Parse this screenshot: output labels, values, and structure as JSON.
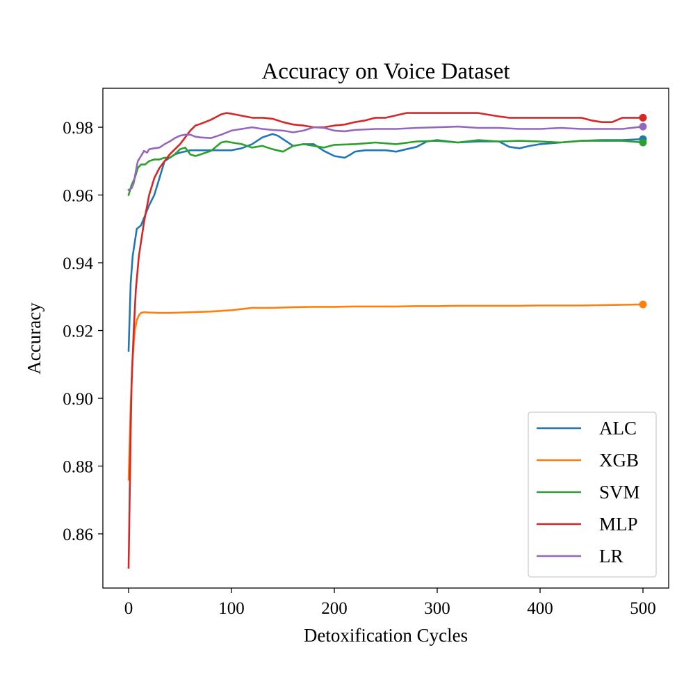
{
  "chart_data": {
    "type": "line",
    "title": "Accuracy on Voice Dataset",
    "xlabel": "Detoxification Cycles",
    "ylabel": "Accuracy",
    "xlim": [
      -25,
      525
    ],
    "ylim": [
      0.844,
      0.9915
    ],
    "xticks": [
      0,
      100,
      200,
      300,
      400,
      500
    ],
    "xtick_labels": [
      "0",
      "100",
      "200",
      "300",
      "400",
      "500"
    ],
    "yticks": [
      0.86,
      0.88,
      0.9,
      0.92,
      0.94,
      0.96,
      0.98
    ],
    "ytick_labels": [
      "0.86",
      "0.88",
      "0.90",
      "0.92",
      "0.94",
      "0.96",
      "0.98"
    ],
    "grid": false,
    "legend_position": "lower-right",
    "series": [
      {
        "name": "ALC",
        "color": "#1f77b4",
        "end_marker": true,
        "x": [
          0,
          2,
          4,
          8,
          12,
          16,
          20,
          25,
          30,
          35,
          40,
          45,
          50,
          60,
          70,
          80,
          90,
          100,
          110,
          120,
          130,
          140,
          145,
          150,
          160,
          170,
          180,
          190,
          200,
          210,
          215,
          220,
          230,
          240,
          250,
          260,
          270,
          280,
          290,
          300,
          320,
          340,
          360,
          370,
          380,
          390,
          400,
          420,
          440,
          460,
          480,
          500
        ],
        "values": [
          0.914,
          0.934,
          0.942,
          0.95,
          0.951,
          0.954,
          0.957,
          0.96,
          0.965,
          0.97,
          0.971,
          0.972,
          0.9725,
          0.9732,
          0.9732,
          0.9732,
          0.9732,
          0.9732,
          0.9738,
          0.975,
          0.977,
          0.978,
          0.9775,
          0.9765,
          0.9745,
          0.975,
          0.975,
          0.973,
          0.9715,
          0.971,
          0.9718,
          0.9728,
          0.9732,
          0.9732,
          0.9732,
          0.9728,
          0.9735,
          0.9742,
          0.9758,
          0.9762,
          0.9755,
          0.9758,
          0.9758,
          0.9742,
          0.9738,
          0.9745,
          0.975,
          0.9755,
          0.976,
          0.9762,
          0.9762,
          0.9765
        ]
      },
      {
        "name": "XGB",
        "color": "#ff7f0e",
        "end_marker": true,
        "x": [
          0,
          2,
          4,
          6,
          8,
          10,
          12,
          15,
          20,
          30,
          40,
          60,
          80,
          100,
          120,
          140,
          160,
          180,
          200,
          220,
          240,
          260,
          280,
          300,
          320,
          340,
          360,
          380,
          400,
          420,
          440,
          460,
          480,
          500
        ],
        "values": [
          0.876,
          0.898,
          0.912,
          0.92,
          0.923,
          0.9245,
          0.9252,
          0.9254,
          0.9253,
          0.9252,
          0.9252,
          0.9254,
          0.9256,
          0.926,
          0.9267,
          0.9267,
          0.9269,
          0.927,
          0.927,
          0.9271,
          0.9271,
          0.9271,
          0.9272,
          0.9272,
          0.9273,
          0.9273,
          0.9273,
          0.9273,
          0.9274,
          0.9274,
          0.9274,
          0.9275,
          0.9276,
          0.9277
        ]
      },
      {
        "name": "SVM",
        "color": "#2ca02c",
        "end_marker": true,
        "x": [
          0,
          3,
          6,
          9,
          12,
          16,
          20,
          25,
          30,
          35,
          40,
          45,
          50,
          55,
          60,
          65,
          70,
          75,
          80,
          90,
          95,
          100,
          110,
          120,
          130,
          140,
          150,
          160,
          170,
          180,
          190,
          200,
          220,
          240,
          260,
          280,
          300,
          320,
          340,
          360,
          380,
          400,
          420,
          440,
          460,
          480,
          500
        ],
        "values": [
          0.96,
          0.963,
          0.965,
          0.968,
          0.969,
          0.969,
          0.97,
          0.9705,
          0.9705,
          0.971,
          0.971,
          0.972,
          0.9735,
          0.974,
          0.972,
          0.9715,
          0.972,
          0.9725,
          0.973,
          0.9755,
          0.9758,
          0.9755,
          0.975,
          0.974,
          0.9745,
          0.9735,
          0.9728,
          0.9745,
          0.975,
          0.9745,
          0.974,
          0.9748,
          0.975,
          0.9755,
          0.975,
          0.9758,
          0.976,
          0.9755,
          0.9762,
          0.9758,
          0.976,
          0.9758,
          0.9755,
          0.976,
          0.976,
          0.976,
          0.9755
        ]
      },
      {
        "name": "MLP",
        "color": "#d62728",
        "end_marker": true,
        "x": [
          0,
          1,
          2,
          3,
          5,
          7,
          10,
          15,
          20,
          25,
          30,
          35,
          40,
          50,
          55,
          60,
          65,
          70,
          80,
          90,
          95,
          100,
          120,
          130,
          140,
          150,
          160,
          170,
          180,
          190,
          200,
          210,
          220,
          230,
          240,
          250,
          260,
          270,
          275,
          300,
          320,
          340,
          360,
          370,
          380,
          400,
          420,
          440,
          450,
          460,
          470,
          480,
          500
        ],
        "values": [
          0.85,
          0.87,
          0.89,
          0.905,
          0.92,
          0.932,
          0.942,
          0.952,
          0.96,
          0.965,
          0.968,
          0.97,
          0.972,
          0.975,
          0.977,
          0.979,
          0.9805,
          0.981,
          0.9822,
          0.9838,
          0.9842,
          0.984,
          0.9828,
          0.9828,
          0.9825,
          0.9815,
          0.9808,
          0.9805,
          0.98,
          0.98,
          0.9805,
          0.9808,
          0.9815,
          0.982,
          0.9828,
          0.9828,
          0.9835,
          0.9842,
          0.9842,
          0.9842,
          0.9842,
          0.9842,
          0.9832,
          0.9828,
          0.9828,
          0.9828,
          0.9828,
          0.9828,
          0.982,
          0.9815,
          0.9815,
          0.9828,
          0.9828
        ]
      },
      {
        "name": "LR",
        "color": "#9467bd",
        "end_marker": true,
        "x": [
          0,
          3,
          5,
          7,
          9,
          12,
          15,
          18,
          20,
          25,
          30,
          35,
          40,
          45,
          50,
          55,
          60,
          65,
          70,
          80,
          90,
          100,
          110,
          120,
          130,
          140,
          150,
          160,
          170,
          180,
          190,
          200,
          210,
          220,
          240,
          260,
          280,
          300,
          320,
          340,
          360,
          380,
          400,
          420,
          440,
          460,
          480,
          500
        ],
        "values": [
          0.9615,
          0.962,
          0.9635,
          0.967,
          0.97,
          0.9715,
          0.973,
          0.9725,
          0.9735,
          0.9738,
          0.974,
          0.975,
          0.9758,
          0.9768,
          0.9775,
          0.9778,
          0.9778,
          0.9772,
          0.977,
          0.9768,
          0.9778,
          0.979,
          0.9795,
          0.98,
          0.9795,
          0.9792,
          0.979,
          0.9785,
          0.979,
          0.98,
          0.9798,
          0.979,
          0.9788,
          0.9792,
          0.9795,
          0.9795,
          0.9798,
          0.98,
          0.9802,
          0.9798,
          0.9798,
          0.9795,
          0.9795,
          0.9798,
          0.9795,
          0.9795,
          0.9795,
          0.9802
        ]
      }
    ]
  }
}
